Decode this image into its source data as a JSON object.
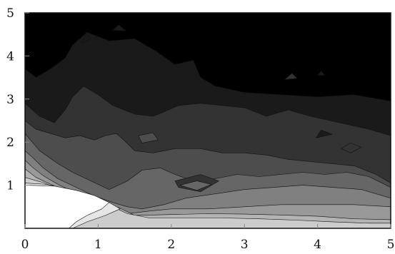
{
  "chart_data": {
    "type": "heatmap",
    "title": "",
    "xlabel": "",
    "ylabel": "",
    "xlim": [
      0,
      5
    ],
    "ylim": [
      0,
      5
    ],
    "x_ticks": [
      0,
      1,
      2,
      3,
      4,
      5
    ],
    "y_ticks": [
      1,
      2,
      3,
      4,
      5
    ],
    "x_tick_labels": [
      "0",
      "1",
      "2",
      "3",
      "4",
      "5"
    ],
    "y_tick_labels": [
      "1",
      "2",
      "3",
      "4",
      "5"
    ],
    "colorscale": "grayscale (black = low, white = high)",
    "levels": [
      0,
      1,
      2,
      3,
      4,
      5,
      6,
      7,
      8,
      9,
      10
    ],
    "grid": false,
    "legend": "none",
    "contours": [
      {
        "level": 1,
        "points": [
          [
            0,
            0
          ],
          [
            5,
            0
          ],
          [
            5,
            2.95
          ],
          [
            4.5,
            3.1
          ],
          [
            4,
            3.05
          ],
          [
            3.5,
            3.1
          ],
          [
            3,
            3.15
          ],
          [
            2.6,
            3.3
          ],
          [
            2.4,
            3.5
          ],
          [
            2.3,
            3.9
          ],
          [
            2.05,
            3.8
          ],
          [
            1.8,
            4.1
          ],
          [
            1.5,
            4.4
          ],
          [
            1.15,
            4.35
          ],
          [
            0.85,
            4.55
          ],
          [
            0.65,
            4.25
          ],
          [
            0.55,
            3.95
          ],
          [
            0.35,
            3.7
          ],
          [
            0.15,
            3.5
          ],
          [
            0,
            3.7
          ]
        ]
      },
      {
        "level": 2,
        "points": [
          [
            0,
            0
          ],
          [
            5,
            0
          ],
          [
            5,
            2.15
          ],
          [
            4.7,
            2.3
          ],
          [
            4.3,
            2.45
          ],
          [
            3.9,
            2.6
          ],
          [
            3.6,
            2.75
          ],
          [
            3.3,
            2.6
          ],
          [
            3,
            2.8
          ],
          [
            2.7,
            2.85
          ],
          [
            2.4,
            2.9
          ],
          [
            2.1,
            2.85
          ],
          [
            1.9,
            2.7
          ],
          [
            1.75,
            2.6
          ],
          [
            1.5,
            2.65
          ],
          [
            1.2,
            2.85
          ],
          [
            1,
            3.1
          ],
          [
            0.8,
            3.3
          ],
          [
            0.65,
            3.05
          ],
          [
            0.55,
            2.75
          ],
          [
            0.4,
            2.45
          ],
          [
            0.2,
            2.6
          ],
          [
            0,
            2.9
          ]
        ]
      },
      {
        "level": 3,
        "points": [
          [
            0,
            0
          ],
          [
            5,
            0
          ],
          [
            5,
            1.05
          ],
          [
            4.8,
            1.25
          ],
          [
            4.5,
            1.45
          ],
          [
            4.2,
            1.5
          ],
          [
            3.9,
            1.55
          ],
          [
            3.6,
            1.6
          ],
          [
            3.3,
            1.7
          ],
          [
            3,
            1.75
          ],
          [
            2.7,
            1.75
          ],
          [
            2.4,
            1.85
          ],
          [
            2.05,
            1.85
          ],
          [
            1.75,
            1.75
          ],
          [
            1.5,
            1.8
          ],
          [
            1.35,
            2.05
          ],
          [
            1.25,
            2.2
          ],
          [
            1.1,
            2.15
          ],
          [
            0.95,
            2.05
          ],
          [
            0.75,
            2.15
          ],
          [
            0.55,
            2.1
          ],
          [
            0.35,
            2.2
          ],
          [
            0.15,
            2.3
          ],
          [
            0,
            2.5
          ]
        ]
      },
      {
        "level": 4,
        "points": [
          [
            0,
            0
          ],
          [
            5,
            0
          ],
          [
            5,
            0.95
          ],
          [
            4.7,
            1.2
          ],
          [
            4.4,
            1.3
          ],
          [
            4.1,
            1.25
          ],
          [
            3.8,
            1.3
          ],
          [
            3.5,
            1.25
          ],
          [
            3.2,
            1.2
          ],
          [
            2.9,
            1.25
          ],
          [
            2.6,
            1.15
          ],
          [
            2.3,
            1.1
          ],
          [
            2.05,
            1.25
          ],
          [
            1.85,
            1.4
          ],
          [
            1.6,
            1.35
          ],
          [
            1.4,
            1.1
          ],
          [
            1.15,
            0.9
          ],
          [
            0.9,
            1.1
          ],
          [
            0.65,
            1.3
          ],
          [
            0.45,
            1.5
          ],
          [
            0.2,
            1.8
          ],
          [
            0,
            2.2
          ]
        ]
      },
      {
        "level": 5,
        "points": [
          [
            0,
            0
          ],
          [
            5,
            0
          ],
          [
            5,
            0.7
          ],
          [
            4.6,
            0.9
          ],
          [
            4.2,
            0.95
          ],
          [
            3.8,
            1
          ],
          [
            3.4,
            0.95
          ],
          [
            3,
            0.9
          ],
          [
            2.6,
            0.8
          ],
          [
            2.2,
            0.7
          ],
          [
            1.9,
            0.55
          ],
          [
            1.6,
            0.45
          ],
          [
            1.4,
            0.5
          ],
          [
            1.2,
            0.6
          ],
          [
            0.95,
            0.75
          ],
          [
            0.7,
            0.95
          ],
          [
            0.45,
            1.15
          ],
          [
            0.25,
            1.4
          ],
          [
            0.1,
            1.65
          ],
          [
            0,
            1.8
          ]
        ]
      },
      {
        "level": 6,
        "points": [
          [
            0,
            0
          ],
          [
            5,
            0
          ],
          [
            5,
            0.5
          ],
          [
            4.5,
            0.55
          ],
          [
            4,
            0.55
          ],
          [
            3.5,
            0.55
          ],
          [
            3,
            0.5
          ],
          [
            2.5,
            0.45
          ],
          [
            2,
            0.45
          ],
          [
            1.7,
            0.4
          ],
          [
            1.45,
            0.35
          ],
          [
            1.3,
            0.42
          ],
          [
            1.1,
            0.52
          ],
          [
            0.9,
            0.65
          ],
          [
            0.7,
            0.82
          ],
          [
            0.45,
            1.02
          ],
          [
            0.25,
            1.22
          ],
          [
            0.1,
            1.42
          ],
          [
            0,
            1.58
          ]
        ]
      },
      {
        "level": 7,
        "points": [
          [
            0,
            0
          ],
          [
            0,
            1.38
          ],
          [
            0.15,
            1.18
          ],
          [
            0.38,
            1
          ],
          [
            0.62,
            0.84
          ],
          [
            0.86,
            0.7
          ],
          [
            1.08,
            0.58
          ],
          [
            1.28,
            0.48
          ],
          [
            1.5,
            0.3
          ],
          [
            2,
            0.32
          ],
          [
            2.5,
            0.34
          ],
          [
            3,
            0.33
          ],
          [
            3.5,
            0.31
          ],
          [
            4,
            0.28
          ],
          [
            4.5,
            0.22
          ],
          [
            5,
            0.2
          ],
          [
            5,
            0
          ]
        ]
      },
      {
        "level": 8,
        "points": [
          [
            0,
            0
          ],
          [
            0,
            1.18
          ],
          [
            0.25,
            1.06
          ],
          [
            0.5,
            0.9
          ],
          [
            0.75,
            0.76
          ],
          [
            1,
            0.62
          ],
          [
            1.2,
            0.5
          ],
          [
            1.4,
            0.34
          ],
          [
            1.7,
            0.24
          ],
          [
            2.2,
            0.24
          ],
          [
            2.7,
            0.24
          ],
          [
            3.2,
            0.22
          ],
          [
            3.7,
            0.19
          ],
          [
            4.2,
            0.15
          ],
          [
            4.7,
            0.12
          ],
          [
            5,
            0.12
          ],
          [
            5,
            0
          ]
        ]
      },
      {
        "level": 9,
        "points": [
          [
            0,
            0
          ],
          [
            0,
            1.05
          ],
          [
            0.3,
            1.02
          ],
          [
            0.6,
            0.9
          ],
          [
            0.9,
            0.76
          ],
          [
            1.15,
            0.6
          ],
          [
            1.3,
            0.45
          ],
          [
            1.1,
            0.3
          ],
          [
            0.85,
            0.15
          ],
          [
            0.65,
            0
          ]
        ]
      },
      {
        "level": 10,
        "points": [
          [
            0,
            0
          ],
          [
            0,
            1
          ],
          [
            0.4,
            0.98
          ],
          [
            0.7,
            0.88
          ],
          [
            0.95,
            0.76
          ],
          [
            1.15,
            0.6
          ],
          [
            1.05,
            0.45
          ],
          [
            0.85,
            0.3
          ],
          [
            0.7,
            0.15
          ],
          [
            0.6,
            0
          ]
        ]
      },
      {
        "level": 1,
        "points": [
          [
            0.78,
            4.3
          ],
          [
            0.83,
            4.5
          ],
          [
            0.9,
            4.4
          ]
        ]
      },
      {
        "level": 1,
        "points": [
          [
            1.2,
            4.6
          ],
          [
            1.28,
            4.72
          ],
          [
            1.38,
            4.58
          ]
        ]
      },
      {
        "level": 1,
        "points": [
          [
            3.98,
            2.1
          ],
          [
            4.05,
            2.28
          ],
          [
            4.2,
            2.18
          ]
        ]
      },
      {
        "level": 2,
        "points": [
          [
            2.05,
            1.1
          ],
          [
            2.4,
            1.25
          ],
          [
            2.65,
            1.1
          ],
          [
            2.4,
            0.85
          ],
          [
            2.1,
            0.95
          ]
        ]
      },
      {
        "level": 3,
        "points": [
          [
            1.55,
            2.15
          ],
          [
            1.75,
            2.22
          ],
          [
            1.82,
            2.05
          ],
          [
            1.6,
            1.98
          ]
        ]
      },
      {
        "level": 4,
        "points": [
          [
            2.12,
            1.0
          ],
          [
            2.35,
            1.1
          ],
          [
            2.55,
            1.02
          ],
          [
            2.35,
            0.88
          ]
        ]
      },
      {
        "level": 2,
        "points": [
          [
            3.55,
            3.45
          ],
          [
            3.65,
            3.6
          ],
          [
            3.72,
            3.48
          ]
        ]
      },
      {
        "level": 1,
        "points": [
          [
            4.0,
            3.55
          ],
          [
            4.05,
            3.65
          ],
          [
            4.1,
            3.55
          ]
        ]
      },
      {
        "level": 2,
        "points": [
          [
            4.32,
            1.85
          ],
          [
            4.45,
            1.98
          ],
          [
            4.6,
            1.88
          ],
          [
            4.45,
            1.75
          ]
        ]
      }
    ]
  }
}
